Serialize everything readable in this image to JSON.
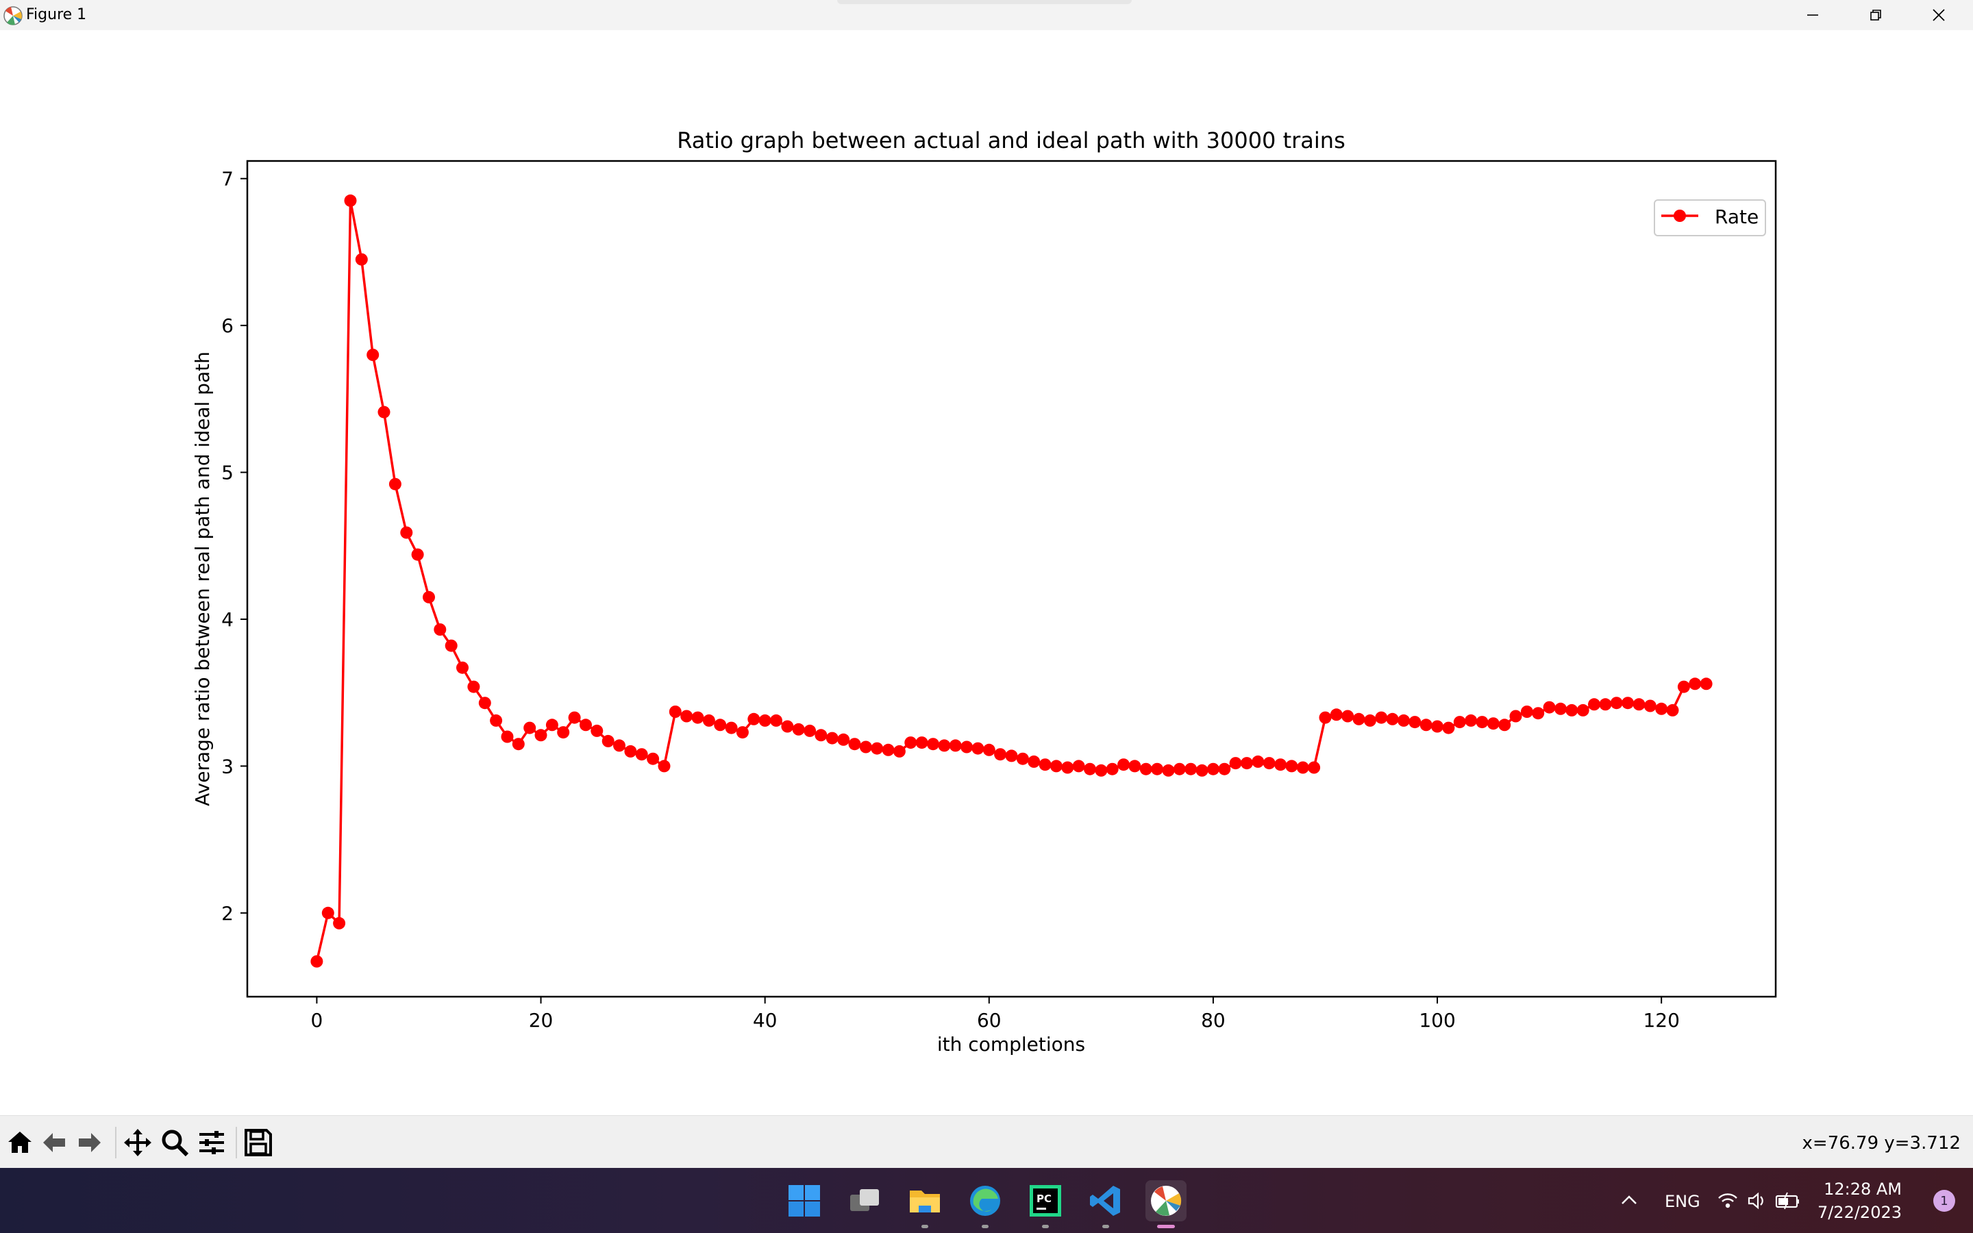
{
  "window": {
    "title": "Figure 1",
    "minimize_icon": "minimize-icon",
    "maximize_icon": "restore-icon",
    "close_icon": "close-icon"
  },
  "chart_data": {
    "type": "line",
    "title": "Ratio graph between actual and ideal path with 30000 trains",
    "xlabel": "ith completions",
    "ylabel": "Average ratio between real path and ideal path",
    "xlim": [
      -6.2,
      130.2
    ],
    "ylim": [
      1.43,
      7.12
    ],
    "xticks": [
      0,
      20,
      40,
      60,
      80,
      100,
      120
    ],
    "yticks": [
      2,
      3,
      4,
      5,
      6,
      7
    ],
    "grid": false,
    "legend_position": "top-right",
    "color": "#ff0000",
    "marker": "circle",
    "series": [
      {
        "name": "Rate",
        "x": [
          0,
          1,
          2,
          3,
          4,
          5,
          6,
          7,
          8,
          9,
          10,
          11,
          12,
          13,
          14,
          15,
          16,
          17,
          18,
          19,
          20,
          21,
          22,
          23,
          24,
          25,
          26,
          27,
          28,
          29,
          30,
          31,
          32,
          33,
          34,
          35,
          36,
          37,
          38,
          39,
          40,
          41,
          42,
          43,
          44,
          45,
          46,
          47,
          48,
          49,
          50,
          51,
          52,
          53,
          54,
          55,
          56,
          57,
          58,
          59,
          60,
          61,
          62,
          63,
          64,
          65,
          66,
          67,
          68,
          69,
          70,
          71,
          72,
          73,
          74,
          75,
          76,
          77,
          78,
          79,
          80,
          81,
          82,
          83,
          84,
          85,
          86,
          87,
          88,
          89,
          90,
          91,
          92,
          93,
          94,
          95,
          96,
          97,
          98,
          99,
          100,
          101,
          102,
          103,
          104,
          105,
          106,
          107,
          108,
          109,
          110,
          111,
          112,
          113,
          114,
          115,
          116,
          117,
          118,
          119,
          120,
          121,
          122,
          123,
          124
        ],
        "y": [
          1.67,
          2.0,
          1.93,
          6.85,
          6.45,
          5.8,
          5.41,
          4.92,
          4.59,
          4.44,
          4.15,
          3.93,
          3.82,
          3.67,
          3.54,
          3.43,
          3.31,
          3.2,
          3.15,
          3.26,
          3.21,
          3.28,
          3.23,
          3.33,
          3.28,
          3.24,
          3.17,
          3.14,
          3.1,
          3.08,
          3.05,
          3.0,
          3.37,
          3.34,
          3.33,
          3.31,
          3.28,
          3.26,
          3.23,
          3.32,
          3.31,
          3.31,
          3.27,
          3.25,
          3.24,
          3.21,
          3.19,
          3.18,
          3.15,
          3.13,
          3.12,
          3.11,
          3.1,
          3.16,
          3.16,
          3.15,
          3.14,
          3.14,
          3.13,
          3.12,
          3.11,
          3.08,
          3.07,
          3.05,
          3.03,
          3.01,
          3.0,
          2.99,
          3.0,
          2.98,
          2.97,
          2.98,
          3.01,
          3.0,
          2.98,
          2.98,
          2.97,
          2.98,
          2.98,
          2.97,
          2.98,
          2.98,
          3.02,
          3.02,
          3.03,
          3.02,
          3.01,
          3.0,
          2.99,
          2.99,
          3.33,
          3.35,
          3.34,
          3.32,
          3.31,
          3.33,
          3.32,
          3.31,
          3.3,
          3.28,
          3.27,
          3.26,
          3.3,
          3.31,
          3.3,
          3.29,
          3.28,
          3.34,
          3.37,
          3.36,
          3.4,
          3.39,
          3.38,
          3.38,
          3.42,
          3.42,
          3.43,
          3.43,
          3.42,
          3.41,
          3.39,
          3.38,
          3.54,
          3.56,
          3.56
        ]
      }
    ]
  },
  "toolbar": {
    "buttons": [
      "home-icon",
      "back-icon",
      "forward-icon",
      "pan-icon",
      "zoom-icon",
      "configure-subplots-icon",
      "save-icon"
    ],
    "coords": "x=76.79 y=3.712"
  },
  "taskbar": {
    "apps": [
      "start-icon",
      "task-view-icon",
      "file-explorer-icon",
      "edge-icon",
      "pycharm-icon",
      "vscode-icon",
      "matplotlib-icon"
    ],
    "language": "ENG",
    "time": "12:28 AM",
    "date": "7/22/2023",
    "notifications": "1"
  }
}
